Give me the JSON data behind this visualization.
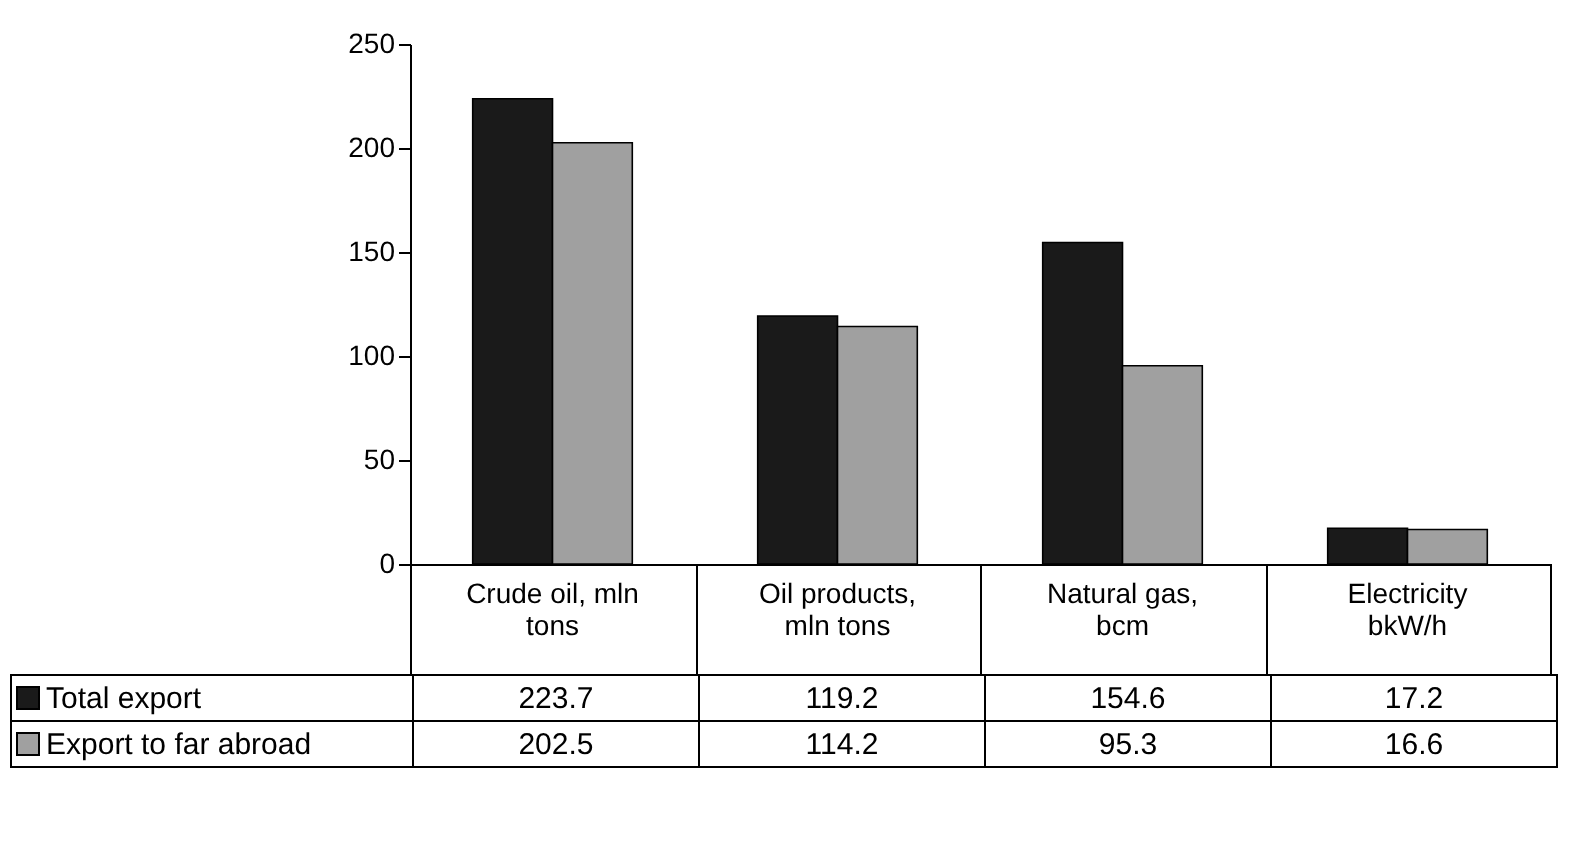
{
  "chart_data": {
    "type": "bar",
    "categories": [
      "Crude oil, mln tons",
      "Oil products, mln tons",
      "Natural gas, bcm",
      "Electricity bkW/h"
    ],
    "series": [
      {
        "name": "Total export",
        "color": "#1a1a1a",
        "values": [
          223.7,
          119.2,
          154.6,
          17.2
        ]
      },
      {
        "name": "Export to far abroad",
        "color": "#a0a0a0",
        "values": [
          202.5,
          114.2,
          95.3,
          16.6
        ]
      }
    ],
    "ylim": [
      0,
      250
    ],
    "yticks": [
      0,
      50,
      100,
      150,
      200,
      250
    ],
    "data_labels": true,
    "legend": "bottom left"
  }
}
